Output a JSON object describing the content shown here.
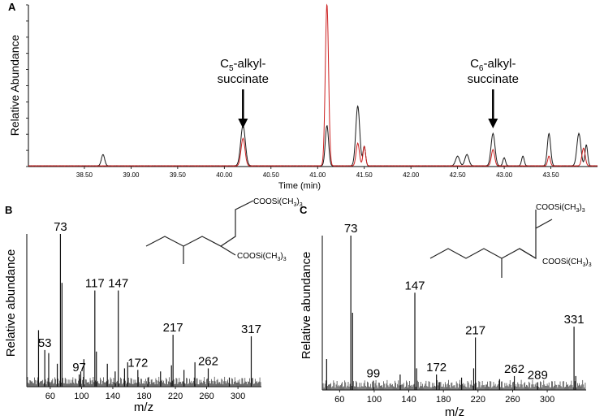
{
  "panels": {
    "a": "A",
    "b": "B",
    "c": "C"
  },
  "chart_data": [
    {
      "id": "A",
      "type": "line",
      "xlabel": "Time (min)",
      "ylabel": "Relative Abundance",
      "xlim": [
        37.9,
        44.0
      ],
      "ylim": [
        0,
        100
      ],
      "xticks": [
        "38.50",
        "39.00",
        "39.50",
        "40.00",
        "40.50",
        "41.00",
        "41.50",
        "42.00",
        "42.50",
        "43.00",
        "43.50"
      ],
      "annotations": [
        {
          "main": "C",
          "sub": "5",
          "rest": "-alkyl-",
          "line2": "succinate",
          "x": 40.2
        },
        {
          "main": "C",
          "sub": "6",
          "rest": "-alkyl-",
          "line2": "succinate",
          "x": 42.88
        }
      ],
      "colors": {
        "black_trace": "#1a1a1a",
        "red_trace": "#cc2020"
      },
      "series": [
        {
          "color": "black",
          "peaks": [
            [
              38.7,
              7,
              0.025
            ],
            [
              40.2,
              25,
              0.035
            ],
            [
              41.1,
              25,
              0.025
            ],
            [
              41.43,
              37,
              0.03
            ],
            [
              41.5,
              12,
              0.02
            ],
            [
              42.5,
              6,
              0.03
            ],
            [
              42.6,
              7,
              0.03
            ],
            [
              42.88,
              20,
              0.03
            ],
            [
              43.0,
              5,
              0.02
            ],
            [
              43.2,
              6,
              0.02
            ],
            [
              43.48,
              20,
              0.025
            ],
            [
              43.8,
              20,
              0.03
            ],
            [
              43.88,
              13,
              0.02
            ]
          ]
        },
        {
          "color": "red",
          "peaks": [
            [
              40.2,
              17,
              0.03
            ],
            [
              41.1,
              100,
              0.025
            ],
            [
              41.43,
              14,
              0.025
            ],
            [
              41.5,
              12,
              0.02
            ],
            [
              42.88,
              10,
              0.025
            ],
            [
              43.48,
              6,
              0.02
            ],
            [
              43.85,
              11,
              0.025
            ]
          ]
        }
      ]
    },
    {
      "id": "B",
      "type": "bar",
      "xlabel": "m/z",
      "ylabel": "Relative abundance",
      "xlim": [
        30,
        330
      ],
      "ylim": [
        0,
        100
      ],
      "xticks": [
        60,
        100,
        140,
        180,
        220,
        260,
        300
      ],
      "peaks": [
        [
          73,
          100
        ],
        [
          75,
          68
        ],
        [
          117,
          63
        ],
        [
          147,
          63
        ],
        [
          217,
          34
        ],
        [
          317,
          33
        ],
        [
          53,
          24
        ],
        [
          97,
          8
        ],
        [
          172,
          11
        ],
        [
          262,
          12
        ],
        [
          45,
          37
        ],
        [
          58,
          22
        ],
        [
          69,
          15
        ],
        [
          99,
          10
        ],
        [
          103,
          18
        ],
        [
          119,
          23
        ],
        [
          133,
          15
        ],
        [
          143,
          10
        ],
        [
          155,
          12
        ],
        [
          159,
          16
        ],
        [
          185,
          6
        ],
        [
          201,
          10
        ],
        [
          215,
          14
        ],
        [
          231,
          11
        ],
        [
          245,
          16
        ],
        [
          289,
          6
        ]
      ],
      "labels": [
        {
          "x": 73,
          "text": "73"
        },
        {
          "x": 117,
          "text": "117"
        },
        {
          "x": 147,
          "text": "147"
        },
        {
          "x": 217,
          "text": "217"
        },
        {
          "x": 317,
          "text": "317"
        },
        {
          "x": 53,
          "text": "53"
        },
        {
          "x": 97,
          "text": "97"
        },
        {
          "x": 172,
          "text": "172"
        },
        {
          "x": 262,
          "text": "262"
        }
      ],
      "structure_labels": [
        "COOSi(CH",
        "3",
        ")",
        "3"
      ]
    },
    {
      "id": "C",
      "type": "bar",
      "xlabel": "m/z",
      "ylabel": "Relative abundance",
      "xlim": [
        40,
        345
      ],
      "ylim": [
        0,
        100
      ],
      "xticks": [
        60,
        100,
        140,
        180,
        220,
        260,
        300
      ],
      "peaks": [
        [
          73,
          100
        ],
        [
          75,
          50
        ],
        [
          147,
          63
        ],
        [
          217,
          34
        ],
        [
          331,
          41
        ],
        [
          99,
          6
        ],
        [
          172,
          10
        ],
        [
          262,
          9
        ],
        [
          289,
          5
        ],
        [
          45,
          20
        ],
        [
          130,
          10
        ],
        [
          149,
          14
        ],
        [
          175,
          5
        ],
        [
          201,
          8
        ],
        [
          215,
          14
        ],
        [
          245,
          7
        ],
        [
          333,
          9
        ]
      ],
      "labels": [
        {
          "x": 73,
          "text": "73"
        },
        {
          "x": 147,
          "text": "147"
        },
        {
          "x": 217,
          "text": "217"
        },
        {
          "x": 331,
          "text": "331"
        },
        {
          "x": 99,
          "text": "99"
        },
        {
          "x": 172,
          "text": "172"
        },
        {
          "x": 262,
          "text": "262"
        },
        {
          "x": 289,
          "text": "289"
        }
      ],
      "structure_labels": [
        "COOSi(CH",
        "3",
        ")",
        "3"
      ]
    }
  ]
}
